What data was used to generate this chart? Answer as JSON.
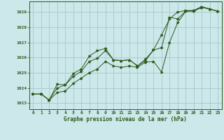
{
  "title": "Graphe pression niveau de la mer (hPa)",
  "bg_color": "#cce8ea",
  "grid_color": "#aacccc",
  "line_color": "#2d5a1b",
  "xlim": [
    -0.5,
    23.5
  ],
  "ylim": [
    1022.6,
    1029.7
  ],
  "yticks": [
    1023,
    1024,
    1025,
    1026,
    1027,
    1028,
    1029
  ],
  "xticks": [
    0,
    1,
    2,
    3,
    4,
    5,
    6,
    7,
    8,
    9,
    10,
    11,
    12,
    13,
    14,
    15,
    16,
    17,
    18,
    19,
    20,
    21,
    22,
    23
  ],
  "series1_x": [
    0,
    1,
    2,
    3,
    4,
    5,
    6,
    7,
    8,
    9,
    10,
    11,
    12,
    13,
    14,
    15,
    16,
    17,
    18,
    19,
    20,
    21,
    22,
    23
  ],
  "series1_y": [
    1023.6,
    1023.6,
    1023.2,
    1023.7,
    1023.8,
    1024.3,
    1024.65,
    1025.0,
    1025.25,
    1025.75,
    1025.45,
    1025.35,
    1025.45,
    1025.35,
    1025.7,
    1025.75,
    1025.05,
    1027.0,
    1028.3,
    1029.05,
    1029.05,
    1029.3,
    1029.2,
    1029.05
  ],
  "series2_x": [
    0,
    1,
    2,
    3,
    4,
    5,
    6,
    7,
    8,
    9,
    10,
    11,
    12,
    13,
    14,
    15,
    16,
    17,
    18,
    19,
    20,
    21,
    22,
    23
  ],
  "series2_y": [
    1023.6,
    1023.6,
    1023.2,
    1024.0,
    1024.2,
    1024.75,
    1025.1,
    1025.75,
    1025.95,
    1026.45,
    1025.85,
    1025.8,
    1025.85,
    1025.45,
    1025.8,
    1026.5,
    1026.65,
    1028.65,
    1028.55,
    1029.05,
    1029.1,
    1029.35,
    1029.2,
    1029.05
  ],
  "series3_x": [
    0,
    1,
    2,
    3,
    4,
    5,
    6,
    7,
    8,
    9,
    10,
    11,
    12,
    13,
    14,
    15,
    16,
    17,
    18,
    19,
    20,
    21,
    22,
    23
  ],
  "series3_y": [
    1023.6,
    1023.6,
    1023.2,
    1024.25,
    1024.2,
    1024.95,
    1025.25,
    1026.1,
    1026.45,
    1026.6,
    1025.85,
    1025.8,
    1025.85,
    1025.45,
    1025.9,
    1026.5,
    1027.5,
    1028.55,
    1029.0,
    1029.1,
    1029.1,
    1029.35,
    1029.2,
    1029.05
  ]
}
